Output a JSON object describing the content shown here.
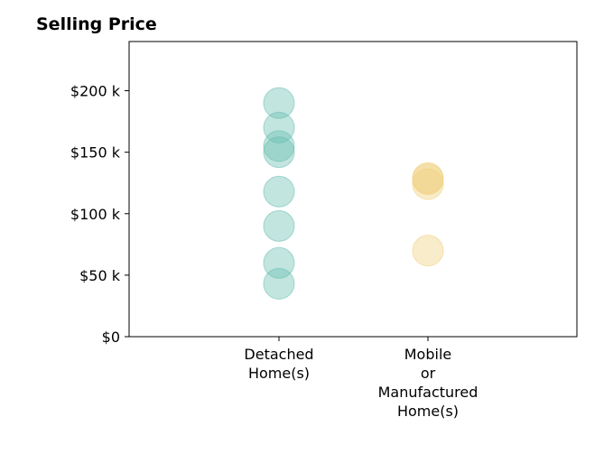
{
  "chart_data": {
    "type": "scatter",
    "title": "Selling Price",
    "xlabel": "",
    "ylabel": "",
    "categories": [
      [
        "Detached",
        "Home(s)"
      ],
      [
        "Mobile",
        "or",
        "Manufactured",
        "Home(s)"
      ]
    ],
    "ylim": [
      0,
      240000
    ],
    "yticks": [
      {
        "value": 0,
        "label": "$0"
      },
      {
        "value": 50000,
        "label": "$50 k"
      },
      {
        "value": 100000,
        "label": "$100 k"
      },
      {
        "value": 150000,
        "label": "$150 k"
      },
      {
        "value": 200000,
        "label": "$200 k"
      }
    ],
    "grid": false,
    "legend": "none",
    "series": [
      {
        "category_index": 0,
        "color": "#66bdb0",
        "values": [
          190000,
          170000,
          155000,
          150000,
          118000,
          90000,
          60000,
          43000
        ]
      },
      {
        "category_index": 1,
        "color": "#f0cf7a",
        "values": [
          129000,
          128000,
          124000,
          70000
        ]
      }
    ]
  }
}
